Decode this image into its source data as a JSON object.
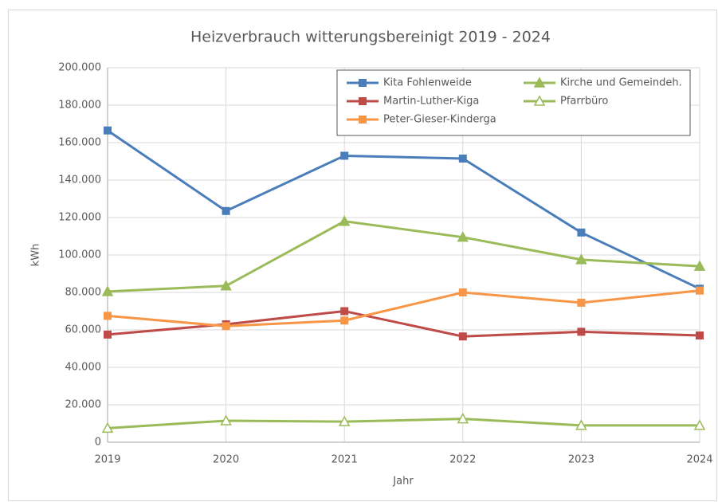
{
  "chart_data": {
    "type": "line",
    "title": "Heizverbrauch  witterungsbereinigt 2019 - 2024",
    "x_label": "Jahr",
    "y_label": "kWh",
    "x": [
      2019,
      2020,
      2021,
      2022,
      2023,
      2024
    ],
    "xlim": [
      2019,
      2024
    ],
    "xticks": [
      2019,
      2020,
      2021,
      2022,
      2023,
      2024
    ],
    "ylim": [
      0,
      200000
    ],
    "yticks": [
      0,
      {
        "value": 20000,
        "label": "20.000"
      },
      {
        "value": 40000,
        "label": "40.000"
      },
      {
        "value": 60000,
        "label": "60.000"
      },
      {
        "value": 80000,
        "label": "80.000"
      },
      {
        "value": 100000,
        "label": "100.000"
      },
      {
        "value": 120000,
        "label": "120.000"
      },
      {
        "value": 140000,
        "label": "140.000"
      },
      {
        "value": 160000,
        "label": "160.000"
      },
      {
        "value": 180000,
        "label": "180.000"
      },
      {
        "value": 200000,
        "label": "200.000"
      }
    ],
    "grid": true,
    "legend": "top-right",
    "series": [
      {
        "name": "Kita Fohlenweide",
        "color": "#4a7ebb",
        "marker": "square",
        "values": [
          166500,
          123500,
          153000,
          151500,
          112000,
          82000
        ]
      },
      {
        "name": "Martin-Luther-Kiga",
        "color": "#be4b48",
        "marker": "square",
        "values": [
          57500,
          63000,
          70000,
          56500,
          59000,
          57000
        ]
      },
      {
        "name": "Peter-Gieser-Kinderga",
        "color": "#f79646",
        "marker": "square",
        "values": [
          67500,
          62000,
          65000,
          80000,
          74500,
          81000
        ]
      },
      {
        "name": "Kirche und Gemeindeh.",
        "color": "#9bbb59",
        "marker": "triangle",
        "values": [
          80500,
          83500,
          118000,
          109500,
          97500,
          94000
        ]
      },
      {
        "name": "Pfarrbüro",
        "color": "#9bbb59",
        "marker": "triangle-open",
        "values": [
          7500,
          11500,
          11000,
          12500,
          9000,
          9000
        ]
      }
    ]
  }
}
